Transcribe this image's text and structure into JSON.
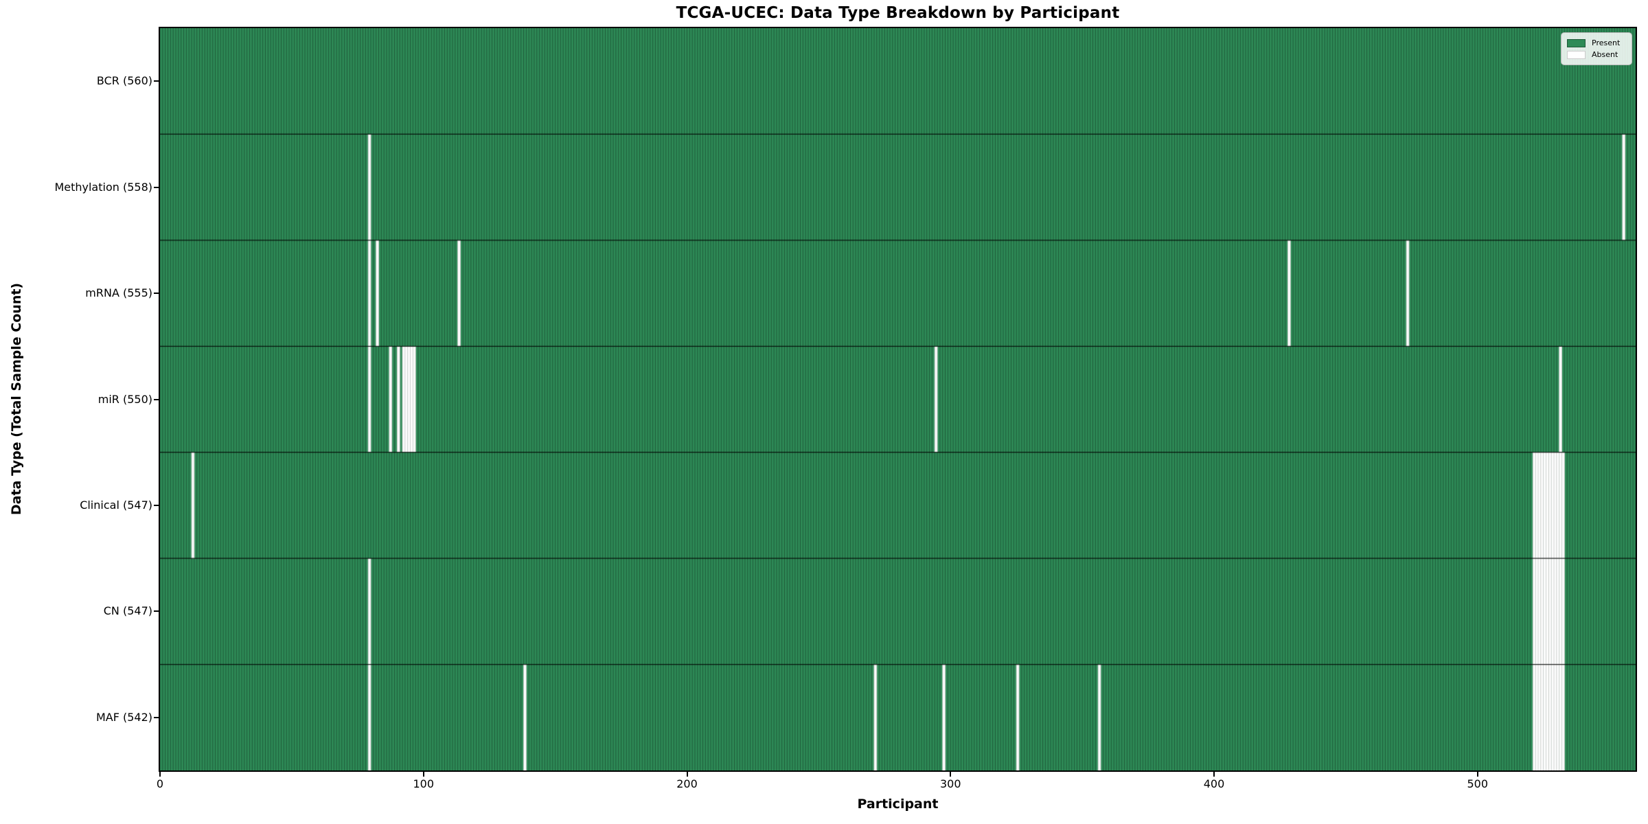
{
  "title": "TCGA-UCEC: Data Type Breakdown by Participant",
  "x_axis": {
    "label": "Participant",
    "ticks": [
      0,
      100,
      200,
      300,
      400,
      500
    ]
  },
  "y_axis": {
    "label": "Data Type (Total Sample Count)"
  },
  "legend": {
    "items": [
      {
        "label": "Present",
        "color": "#2e8b57"
      },
      {
        "label": "Absent",
        "color": "#ffffff"
      }
    ]
  },
  "chart_data": {
    "type": "heatmap",
    "title": "TCGA-UCEC: Data Type Breakdown by Participant",
    "xlabel": "Participant",
    "ylabel": "Data Type (Total Sample Count)",
    "legend_position": "upper right",
    "x_ticks": [
      0,
      100,
      200,
      300,
      400,
      500
    ],
    "xlim": [
      0,
      560
    ],
    "n_participants": 560,
    "present_color": "#2e8b57",
    "absent_color": "#ffffff",
    "edge_color_present": "rgba(0,0,0,0.40)",
    "edge_color_absent": "#cccccc",
    "row_separator_color": "rgba(0,0,0,0.85)",
    "spine_color": "#000000",
    "rows": [
      {
        "label": "BCR (560)",
        "data_type": "BCR",
        "present_count": 560,
        "absent_count": 0,
        "absent_participants": []
      },
      {
        "label": "Methylation (558)",
        "data_type": "Methylation",
        "present_count": 558,
        "absent_count": 2,
        "absent_participants": [
          79,
          555
        ]
      },
      {
        "label": "mRNA (555)",
        "data_type": "mRNA",
        "present_count": 555,
        "absent_count": 5,
        "absent_participants": [
          79,
          82,
          113,
          428,
          473
        ]
      },
      {
        "label": "miR (550)",
        "data_type": "miR",
        "present_count": 550,
        "absent_count": 10,
        "absent_participants": [
          79,
          87,
          90,
          92,
          93,
          94,
          95,
          96,
          294,
          531
        ]
      },
      {
        "label": "Clinical (547)",
        "data_type": "Clinical",
        "present_count": 547,
        "absent_count": 13,
        "absent_participants": [
          12,
          521,
          522,
          523,
          524,
          525,
          526,
          527,
          528,
          529,
          530,
          531,
          532
        ]
      },
      {
        "label": "CN (547)",
        "data_type": "CN",
        "present_count": 547,
        "absent_count": 13,
        "absent_participants": [
          79,
          521,
          522,
          523,
          524,
          525,
          526,
          527,
          528,
          529,
          530,
          531,
          532
        ]
      },
      {
        "label": "MAF (542)",
        "data_type": "MAF",
        "present_count": 542,
        "absent_count": 18,
        "absent_participants": [
          79,
          138,
          271,
          297,
          325,
          356,
          521,
          522,
          523,
          524,
          525,
          526,
          527,
          528,
          529,
          530,
          531,
          532
        ]
      }
    ]
  }
}
